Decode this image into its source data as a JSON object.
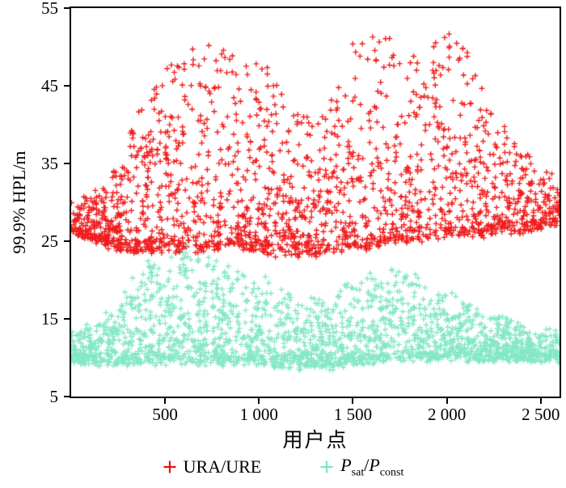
{
  "legend": {
    "items": [
      {
        "name": "URA/URE",
        "label": "URA/URE"
      },
      {
        "name": "Psat/Pconst",
        "label_parts": {
          "var1": "P",
          "sub1": "sat",
          "sep": "/",
          "var2": "P",
          "sub2": "const"
        }
      }
    ]
  },
  "chart_data": {
    "type": "scatter",
    "title": "",
    "xlabel": "用户点",
    "ylabel": "99.9% HPL/m",
    "xlim": [
      0,
      2600
    ],
    "ylim": [
      5,
      55
    ],
    "grid": false,
    "legend_position": "bottom",
    "x_ticks": [
      {
        "value": 500,
        "label": "500"
      },
      {
        "value": 1000,
        "label": "1 000"
      },
      {
        "value": 1500,
        "label": "1 500"
      },
      {
        "value": 2000,
        "label": "2 000"
      },
      {
        "value": 2500,
        "label": "2 500"
      }
    ],
    "y_ticks": [
      {
        "value": 5,
        "label": "5"
      },
      {
        "value": 15,
        "label": "15"
      },
      {
        "value": 25,
        "label": "25"
      },
      {
        "value": 35,
        "label": "35"
      },
      {
        "value": 45,
        "label": "45"
      },
      {
        "value": 55,
        "label": "55"
      }
    ],
    "series": [
      {
        "name": "URA/URE",
        "color": "#ee1111",
        "marker": "plus",
        "n_points": 2000,
        "seed": 1337,
        "cluster_exponent": 2.2,
        "envelope": [
          [
            0,
            26.5,
            29.5
          ],
          [
            100,
            25.5,
            31
          ],
          [
            200,
            24.5,
            33
          ],
          [
            300,
            24,
            38
          ],
          [
            400,
            24,
            44
          ],
          [
            500,
            24,
            47
          ],
          [
            600,
            24,
            49
          ],
          [
            700,
            24,
            50
          ],
          [
            800,
            24.5,
            50
          ],
          [
            900,
            24.5,
            48.5
          ],
          [
            1000,
            24,
            49
          ],
          [
            1100,
            23.5,
            45
          ],
          [
            1200,
            23.5,
            42
          ],
          [
            1300,
            23.5,
            40
          ],
          [
            1400,
            24,
            44
          ],
          [
            1500,
            24,
            50
          ],
          [
            1600,
            24.5,
            51
          ],
          [
            1700,
            25,
            52
          ],
          [
            1800,
            25,
            50
          ],
          [
            1900,
            25.5,
            49
          ],
          [
            2000,
            26,
            53.5
          ],
          [
            2100,
            26,
            50
          ],
          [
            2200,
            26,
            44
          ],
          [
            2300,
            26.5,
            40
          ],
          [
            2400,
            26.5,
            38
          ],
          [
            2500,
            27,
            35
          ],
          [
            2600,
            27.5,
            33
          ]
        ]
      },
      {
        "name": "Psat/Pconst",
        "color": "#7de6c3",
        "marker": "plus",
        "n_points": 2200,
        "seed": 2024,
        "cluster_exponent": 2.0,
        "envelope": [
          [
            0,
            10,
            13
          ],
          [
            100,
            9.5,
            14
          ],
          [
            200,
            9.5,
            16
          ],
          [
            300,
            9.5,
            19
          ],
          [
            400,
            9.5,
            22
          ],
          [
            500,
            9.5,
            23
          ],
          [
            600,
            9.5,
            24
          ],
          [
            700,
            9.5,
            24
          ],
          [
            800,
            9.5,
            22
          ],
          [
            900,
            9.5,
            21
          ],
          [
            1000,
            9.5,
            21
          ],
          [
            1100,
            9,
            19
          ],
          [
            1200,
            9,
            18
          ],
          [
            1300,
            9,
            17.5
          ],
          [
            1400,
            9,
            18
          ],
          [
            1500,
            9.5,
            20
          ],
          [
            1600,
            9.5,
            21
          ],
          [
            1700,
            10,
            22
          ],
          [
            1800,
            10,
            21
          ],
          [
            1900,
            10,
            19
          ],
          [
            2000,
            10,
            18.5
          ],
          [
            2100,
            10,
            17
          ],
          [
            2200,
            10,
            16
          ],
          [
            2300,
            10,
            15
          ],
          [
            2400,
            10,
            14
          ],
          [
            2500,
            10,
            13.5
          ],
          [
            2600,
            10,
            13
          ]
        ]
      }
    ]
  }
}
